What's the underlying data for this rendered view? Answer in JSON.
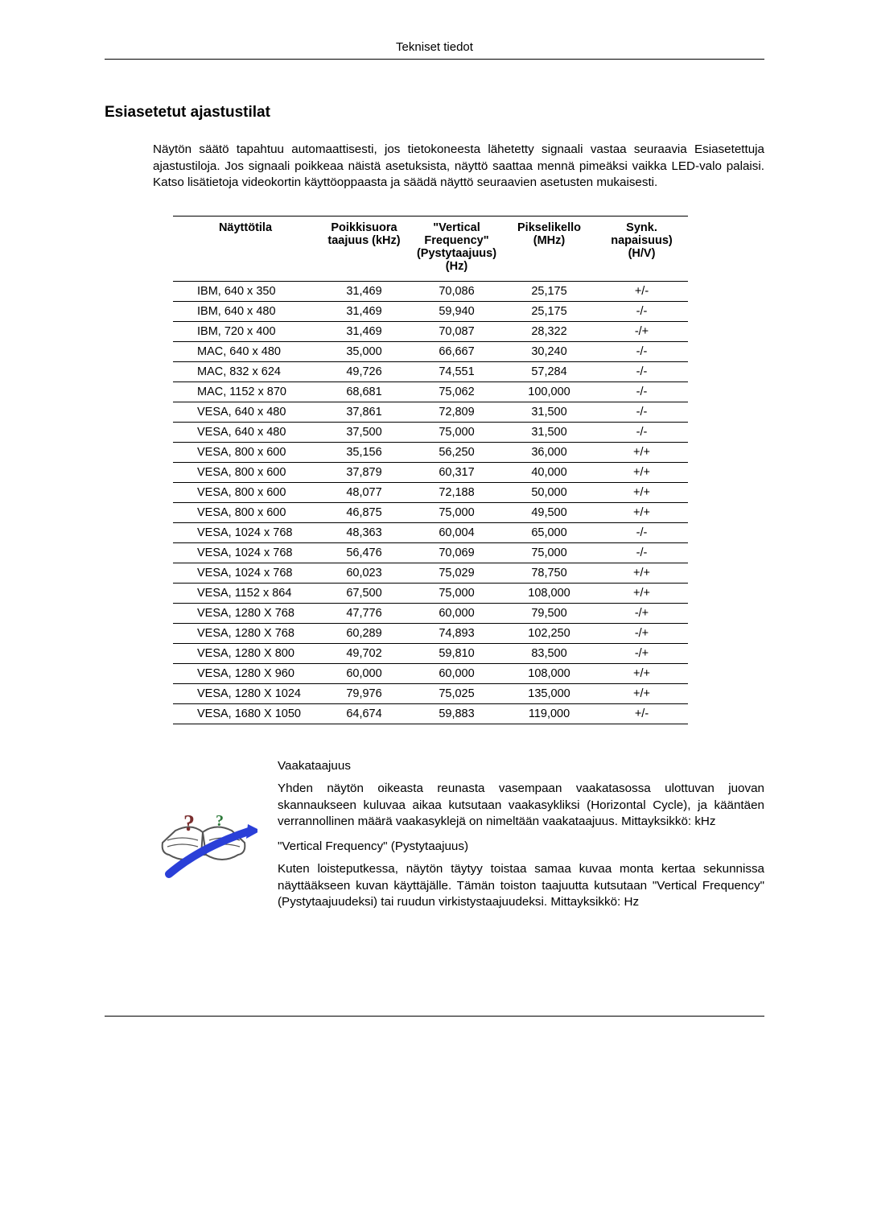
{
  "header": {
    "title": "Tekniset tiedot"
  },
  "section": {
    "title": "Esiasetetut ajastustilat",
    "intro": "Näytön säätö tapahtuu automaattisesti, jos tietokoneesta lähetetty signaali vastaa seuraavia Esiasetettuja ajastustiloja. Jos signaali poikkeaa näistä asetuksista, näyttö saattaa mennä pimeäksi vaikka LED-valo palaisi. Katso lisätietoja videokortin käyttöoppaasta ja säädä näyttö seuraavien asetusten mukaisesti."
  },
  "table": {
    "columns": [
      "Näyttötila",
      "Poikkisuora taajuus (kHz)",
      "\"Vertical Frequency\" (Pystytaajuus) (Hz)",
      "Pikselikello (MHz)",
      "Synk. napaisuus) (H/V)"
    ],
    "col_widths": [
      "180px",
      "115px",
      "115px",
      "115px",
      "115px"
    ],
    "header_fontsize": 14.7,
    "cell_fontsize": 14.5,
    "border_color": "#000000",
    "rows": [
      [
        "IBM, 640 x 350",
        "31,469",
        "70,086",
        "25,175",
        "+/-"
      ],
      [
        "IBM, 640 x 480",
        "31,469",
        "59,940",
        "25,175",
        "-/-"
      ],
      [
        "IBM, 720 x 400",
        "31,469",
        "70,087",
        "28,322",
        "-/+"
      ],
      [
        "MAC, 640 x 480",
        "35,000",
        "66,667",
        "30,240",
        "-/-"
      ],
      [
        "MAC, 832 x 624",
        "49,726",
        "74,551",
        "57,284",
        "-/-"
      ],
      [
        "MAC, 1152 x 870",
        "68,681",
        "75,062",
        "100,000",
        "-/-"
      ],
      [
        "VESA, 640 x 480",
        "37,861",
        "72,809",
        "31,500",
        "-/-"
      ],
      [
        "VESA, 640 x 480",
        "37,500",
        "75,000",
        "31,500",
        "-/-"
      ],
      [
        "VESA, 800 x 600",
        "35,156",
        "56,250",
        "36,000",
        "+/+"
      ],
      [
        "VESA, 800 x 600",
        "37,879",
        "60,317",
        "40,000",
        "+/+"
      ],
      [
        "VESA, 800 x 600",
        "48,077",
        "72,188",
        "50,000",
        "+/+"
      ],
      [
        "VESA, 800 x 600",
        "46,875",
        "75,000",
        "49,500",
        "+/+"
      ],
      [
        "VESA, 1024 x 768",
        "48,363",
        "60,004",
        "65,000",
        "-/-"
      ],
      [
        "VESA, 1024 x 768",
        "56,476",
        "70,069",
        "75,000",
        "-/-"
      ],
      [
        "VESA, 1024 x 768",
        "60,023",
        "75,029",
        "78,750",
        "+/+"
      ],
      [
        "VESA, 1152 x 864",
        "67,500",
        "75,000",
        "108,000",
        "+/+"
      ],
      [
        "VESA, 1280 X 768",
        "47,776",
        "60,000",
        "79,500",
        "-/+"
      ],
      [
        "VESA, 1280 X 768",
        "60,289",
        "74,893",
        "102,250",
        "-/+"
      ],
      [
        "VESA, 1280 X 800",
        "49,702",
        "59,810",
        "83,500",
        "-/+"
      ],
      [
        "VESA, 1280 X 960",
        "60,000",
        "60,000",
        "108,000",
        "+/+"
      ],
      [
        "VESA, 1280 X 1024",
        "79,976",
        "75,025",
        "135,000",
        "+/+"
      ],
      [
        "VESA, 1680 X 1050",
        "64,674",
        "59,883",
        "119,000",
        "+/-"
      ]
    ]
  },
  "info": {
    "icon_colors": {
      "check": "#2a3fd8",
      "outline": "#4a4a4a"
    },
    "h_freq_title": "Vaakataajuus",
    "h_freq_text": "Yhden näytön oikeasta reunasta vasempaan vaakatasossa ulottuvan juovan skannaukseen kuluvaa aikaa kutsutaan vaakasykliksi (Horizontal Cycle), ja kääntäen verrannollinen määrä vaakasyklejä on nimeltään vaakataajuus. Mittayksikkö: kHz",
    "v_freq_title": "\"Vertical Frequency\" (Pystytaajuus)",
    "v_freq_text": "Kuten loisteputkessa, näytön täytyy toistaa samaa kuvaa monta kertaa sekunnissa näyttääkseen kuvan käyttäjälle. Tämän toiston taajuutta kutsutaan \"Vertical Frequency\" (Pystytaajuudeksi) tai ruudun virkistystaajuudeksi. Mittayksikkö: Hz"
  }
}
